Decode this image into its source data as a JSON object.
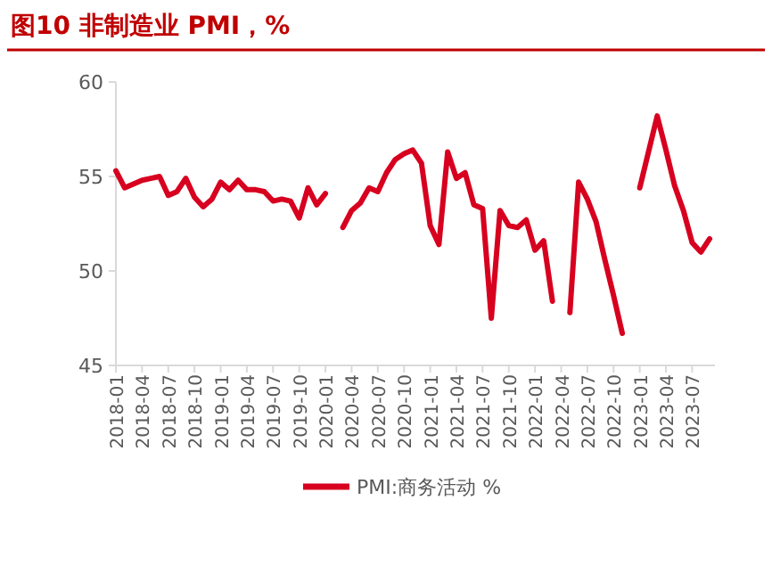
{
  "chart_data": {
    "type": "line",
    "title": "图10  非制造业 PMI，%",
    "categories": [
      "2018-01",
      null,
      null,
      "2018-04",
      null,
      null,
      "2018-07",
      null,
      null,
      "2018-10",
      null,
      null,
      "2019-01",
      null,
      null,
      "2019-04",
      null,
      null,
      "2019-07",
      null,
      null,
      "2019-10",
      null,
      null,
      "2020-01",
      null,
      null,
      "2020-04",
      null,
      null,
      "2020-07",
      null,
      null,
      "2020-10",
      null,
      null,
      "2021-01",
      null,
      null,
      "2021-04",
      null,
      null,
      "2021-07",
      null,
      null,
      "2021-10",
      null,
      null,
      "2022-01",
      null,
      null,
      "2022-04",
      null,
      null,
      "2022-07",
      null,
      null,
      "2022-10",
      null,
      null,
      "2023-01",
      null,
      null,
      "2023-04",
      null,
      null,
      "2023-07",
      null,
      null
    ],
    "series": [
      {
        "name": "PMI:商务活动 %",
        "color": "#d7001f",
        "values": [
          55.3,
          54.4,
          54.6,
          54.8,
          54.9,
          55.0,
          54.0,
          54.2,
          54.9,
          53.9,
          53.4,
          53.8,
          54.7,
          54.3,
          54.8,
          54.3,
          54.3,
          54.2,
          53.7,
          53.8,
          53.7,
          52.8,
          54.4,
          53.5,
          54.1,
          null,
          52.3,
          53.2,
          53.6,
          54.4,
          54.2,
          55.2,
          55.9,
          56.2,
          56.4,
          55.7,
          52.4,
          51.4,
          56.3,
          54.9,
          55.2,
          53.5,
          53.3,
          47.5,
          53.2,
          52.4,
          52.3,
          52.7,
          51.1,
          51.6,
          48.4,
          null,
          47.8,
          54.7,
          53.8,
          52.6,
          50.6,
          48.7,
          46.7,
          null,
          54.4,
          56.3,
          58.2,
          56.4,
          54.5,
          53.2,
          51.5,
          51.0,
          51.7
        ]
      }
    ],
    "ylim": [
      45,
      60
    ],
    "yticks": [
      45,
      50,
      55,
      60
    ],
    "grid": false,
    "legend": "bottom",
    "marker": "none",
    "line_style": "solid"
  }
}
